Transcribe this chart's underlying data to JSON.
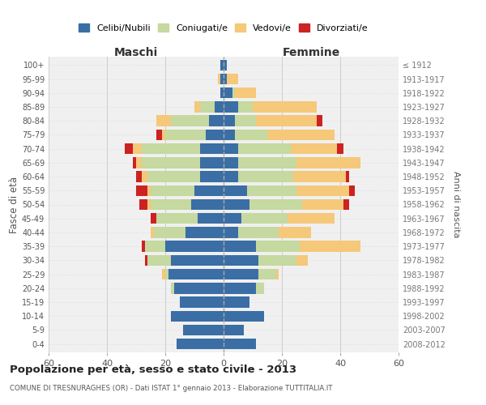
{
  "age_groups": [
    "0-4",
    "5-9",
    "10-14",
    "15-19",
    "20-24",
    "25-29",
    "30-34",
    "35-39",
    "40-44",
    "45-49",
    "50-54",
    "55-59",
    "60-64",
    "65-69",
    "70-74",
    "75-79",
    "80-84",
    "85-89",
    "90-94",
    "95-99",
    "100+"
  ],
  "birth_years": [
    "2008-2012",
    "2003-2007",
    "1998-2002",
    "1993-1997",
    "1988-1992",
    "1983-1987",
    "1978-1982",
    "1973-1977",
    "1968-1972",
    "1963-1967",
    "1958-1962",
    "1953-1957",
    "1948-1952",
    "1943-1947",
    "1938-1942",
    "1933-1937",
    "1928-1932",
    "1923-1927",
    "1918-1922",
    "1913-1917",
    "≤ 1912"
  ],
  "maschi_celibi": [
    16,
    14,
    18,
    15,
    17,
    19,
    18,
    20,
    13,
    9,
    11,
    10,
    8,
    8,
    8,
    6,
    5,
    3,
    1,
    1,
    1
  ],
  "maschi_coniugati": [
    0,
    0,
    0,
    0,
    1,
    1,
    8,
    7,
    11,
    14,
    14,
    15,
    18,
    20,
    20,
    14,
    13,
    5,
    0,
    0,
    0
  ],
  "maschi_vedovi": [
    0,
    0,
    0,
    0,
    0,
    1,
    0,
    0,
    1,
    0,
    1,
    1,
    2,
    2,
    3,
    1,
    5,
    2,
    0,
    1,
    0
  ],
  "maschi_divorziati": [
    0,
    0,
    0,
    0,
    0,
    0,
    1,
    1,
    0,
    2,
    3,
    4,
    2,
    1,
    3,
    2,
    0,
    0,
    0,
    0,
    0
  ],
  "femmine_celibi": [
    11,
    7,
    14,
    9,
    11,
    12,
    12,
    11,
    5,
    6,
    9,
    8,
    5,
    5,
    5,
    4,
    4,
    5,
    3,
    1,
    1
  ],
  "femmine_coniugati": [
    0,
    0,
    0,
    0,
    3,
    6,
    13,
    15,
    14,
    16,
    18,
    17,
    19,
    20,
    18,
    11,
    7,
    5,
    1,
    0,
    0
  ],
  "femmine_vedovi": [
    0,
    0,
    0,
    0,
    0,
    1,
    4,
    21,
    11,
    16,
    14,
    18,
    18,
    22,
    16,
    23,
    21,
    22,
    7,
    4,
    0
  ],
  "femmine_divorziati": [
    0,
    0,
    0,
    0,
    0,
    0,
    0,
    0,
    0,
    0,
    2,
    2,
    1,
    0,
    2,
    0,
    2,
    0,
    0,
    0,
    0
  ],
  "colors": {
    "celibi": "#3a6ea5",
    "coniugati": "#c5d9a0",
    "vedovi": "#f5c87a",
    "divorziati": "#cc2222"
  },
  "title": "Popolazione per età, sesso e stato civile - 2013",
  "subtitle": "COMUNE DI TRESNURAGHES (OR) - Dati ISTAT 1° gennaio 2013 - Elaborazione TUTTITALIA.IT",
  "ylabel": "Fasce di età",
  "ylabel_right": "Anni di nascita",
  "xlabel_maschi": "Maschi",
  "xlabel_femmine": "Femmine",
  "xlim": 60,
  "bg_color": "#ffffff",
  "grid_color": "#cccccc",
  "legend_labels": [
    "Celibi/Nubili",
    "Coniugati/e",
    "Vedovi/e",
    "Divorziati/e"
  ]
}
